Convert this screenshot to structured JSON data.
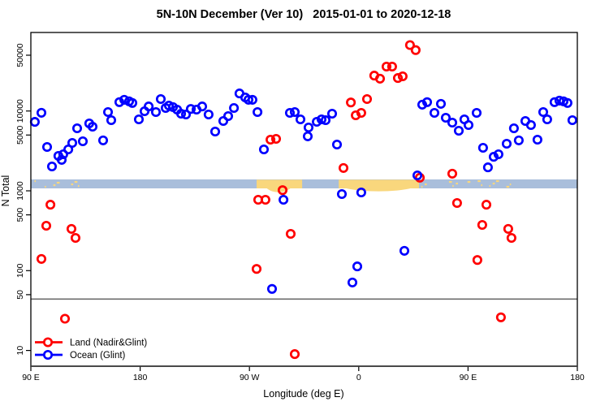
{
  "title": "5N-10N December (Ver 10)   2015-01-01 to 2020-12-18",
  "legend": {
    "land_label": "Land (Nadir&Glint)",
    "ocean_label": "Ocean (Glint)"
  },
  "chart_data": {
    "type": "scatter",
    "title": "5N-10N December (Ver 10)   2015-01-01 to 2020-12-18",
    "xlabel": "Longitude (deg E)",
    "ylabel": "N Total",
    "y_scale": "log10",
    "ylim": [
      6.5,
      95000
    ],
    "x_axis_note": "longitude unwrapped in deg E from 90E (left) eastward to 540 (=180 after second wrap)",
    "x_domain": [
      90,
      540
    ],
    "x_ticks": [
      {
        "lon": 90,
        "label": "90 E"
      },
      {
        "lon": 180,
        "label": "180"
      },
      {
        "lon": 270,
        "label": "90 W"
      },
      {
        "lon": 360,
        "label": "0"
      },
      {
        "lon": 450,
        "label": "90 E"
      },
      {
        "lon": 540,
        "label": "180"
      }
    ],
    "y_ticks": [
      50000,
      10000,
      5000,
      1000,
      500,
      100,
      50,
      10
    ],
    "reference_line": {
      "value": 44,
      "color": "#6e6e6e"
    },
    "band": {
      "value_from": 1073,
      "value_to": 1390,
      "color": "#a9bedb"
    },
    "band_orange_color": "#f9d77d",
    "band_orange_segments": [
      {
        "lon_from": 275.9,
        "lon_to": 313.4,
        "dip_from": 284.0,
        "dip_to": 304.0,
        "dip_depth": 6.5
      },
      {
        "lon_from": 343.5,
        "lon_to": 409.6,
        "dip_from": 348.5,
        "dip_to": 404.0,
        "dip_depth": 5.0
      }
    ],
    "band_orange_speckle_ranges": [
      [
        93,
        102
      ],
      [
        108.5,
        114
      ],
      [
        117.5,
        130
      ],
      [
        411.5,
        415
      ],
      [
        431.5,
        441
      ],
      [
        449.5,
        463
      ],
      [
        467.5,
        485
      ],
      [
        491.5,
        494.5
      ]
    ],
    "series": [
      {
        "name": "Land (Nadir&Glint)",
        "color": "#ff0000",
        "points": [
          [
            106.1,
            670
          ],
          [
            102.7,
            365
          ],
          [
            123.4,
            333
          ],
          [
            126.8,
            257
          ],
          [
            98.7,
            140
          ],
          [
            118.1,
            25
          ],
          [
            287.3,
            4370
          ],
          [
            291.9,
            4480
          ],
          [
            277.2,
            772
          ],
          [
            283.2,
            772
          ],
          [
            297.3,
            1020
          ],
          [
            304.0,
            289
          ],
          [
            275.9,
            105
          ],
          [
            307.3,
            9
          ],
          [
            347.4,
            1930
          ],
          [
            353.5,
            12800
          ],
          [
            366.8,
            14100
          ],
          [
            357.5,
            8830
          ],
          [
            362.1,
            9480
          ],
          [
            372.8,
            27800
          ],
          [
            377.5,
            25400
          ],
          [
            382.9,
            36000
          ],
          [
            387.5,
            36000
          ],
          [
            392.2,
            25900
          ],
          [
            396.2,
            27200
          ],
          [
            402.2,
            67000
          ],
          [
            406.9,
            58000
          ],
          [
            410.3,
            1460
          ],
          [
            437.0,
            1640
          ],
          [
            441.0,
            703
          ],
          [
            465.1,
            670
          ],
          [
            461.7,
            374
          ],
          [
            483.1,
            333
          ],
          [
            485.8,
            257
          ],
          [
            457.7,
            136
          ],
          [
            477.1,
            26
          ]
        ]
      },
      {
        "name": "Ocean (Glint)",
        "color": "#0000ff",
        "points": [
          [
            93.3,
            7300
          ],
          [
            98.7,
            9500
          ],
          [
            103.4,
            3540
          ],
          [
            107.4,
            2020
          ],
          [
            112.7,
            2740
          ],
          [
            115.4,
            2440
          ],
          [
            116.7,
            2870
          ],
          [
            120.8,
            3300
          ],
          [
            124.1,
            3980
          ],
          [
            128.1,
            6070
          ],
          [
            132.8,
            4170
          ],
          [
            138.1,
            6980
          ],
          [
            140.8,
            6370
          ],
          [
            149.5,
            4280
          ],
          [
            153.5,
            9700
          ],
          [
            156.2,
            7670
          ],
          [
            162.9,
            12900
          ],
          [
            166.9,
            13800
          ],
          [
            170.9,
            13200
          ],
          [
            173.6,
            12600
          ],
          [
            178.9,
            7850
          ],
          [
            183.6,
            9930
          ],
          [
            187.0,
            11400
          ],
          [
            193.0,
            9700
          ],
          [
            197.0,
            14100
          ],
          [
            201.0,
            10900
          ],
          [
            203.7,
            11700
          ],
          [
            207.0,
            11200
          ],
          [
            210.4,
            10400
          ],
          [
            213.7,
            9250
          ],
          [
            217.7,
            9040
          ],
          [
            221.7,
            10600
          ],
          [
            226.4,
            10400
          ],
          [
            231.1,
            11400
          ],
          [
            236.4,
            9040
          ],
          [
            241.8,
            5530
          ],
          [
            248.5,
            7500
          ],
          [
            252.5,
            8630
          ],
          [
            257.2,
            10900
          ],
          [
            261.8,
            16600
          ],
          [
            266.5,
            14800
          ],
          [
            269.2,
            13800
          ],
          [
            272.5,
            13800
          ],
          [
            276.6,
            9700
          ],
          [
            281.9,
            3300
          ],
          [
            288.6,
            59
          ],
          [
            298.0,
            772
          ],
          [
            303.3,
            9480
          ],
          [
            307.3,
            9700
          ],
          [
            312.0,
            7850
          ],
          [
            318.0,
            4810
          ],
          [
            318.7,
            6210
          ],
          [
            325.4,
            7330
          ],
          [
            329.4,
            7850
          ],
          [
            332.7,
            7670
          ],
          [
            338.1,
            9250
          ],
          [
            342.1,
            3800
          ],
          [
            346.1,
            910
          ],
          [
            354.8,
            71
          ],
          [
            358.8,
            113
          ],
          [
            362.1,
            955
          ],
          [
            397.6,
            177
          ],
          [
            408.3,
            1560
          ],
          [
            412.3,
            12000
          ],
          [
            416.3,
            12900
          ],
          [
            422.3,
            9480
          ],
          [
            427.7,
            12300
          ],
          [
            431.7,
            8240
          ],
          [
            437.0,
            7160
          ],
          [
            442.4,
            5660
          ],
          [
            447.0,
            7850
          ],
          [
            450.4,
            6670
          ],
          [
            457.1,
            9480
          ],
          [
            462.4,
            3460
          ],
          [
            466.4,
            1970
          ],
          [
            471.1,
            2670
          ],
          [
            475.1,
            2870
          ],
          [
            481.8,
            3890
          ],
          [
            487.8,
            6070
          ],
          [
            491.8,
            4280
          ],
          [
            497.2,
            7500
          ],
          [
            501.8,
            6670
          ],
          [
            507.2,
            4370
          ],
          [
            511.9,
            9700
          ],
          [
            515.2,
            7850
          ],
          [
            521.2,
            12900
          ],
          [
            525.2,
            13500
          ],
          [
            528.6,
            13200
          ],
          [
            531.9,
            12600
          ],
          [
            535.9,
            7670
          ]
        ]
      }
    ]
  }
}
